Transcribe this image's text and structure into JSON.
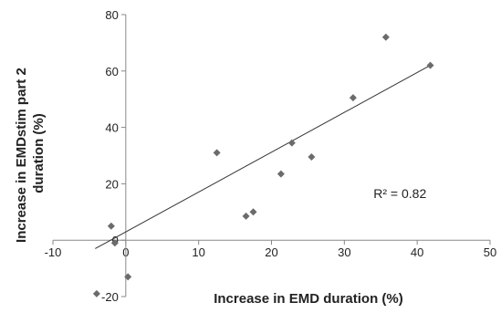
{
  "chart_data": {
    "type": "scatter",
    "title": "",
    "xlabel": "Increase in EMD duration (%)",
    "ylabel_lines": [
      "Increase in EMDstim part 2",
      "duration (%)"
    ],
    "xlim": [
      -10,
      50
    ],
    "ylim": [
      -20,
      80
    ],
    "x_ticks": [
      -10,
      0,
      10,
      20,
      30,
      40,
      50
    ],
    "y_ticks": [
      -20,
      0,
      20,
      40,
      60,
      80
    ],
    "x_tick_labels": [
      "-10",
      "0",
      "10",
      "20",
      "30",
      "40",
      "50"
    ],
    "y_tick_labels": [
      "-20",
      "0",
      "20",
      "40",
      "60",
      "80"
    ],
    "grid": false,
    "marker": "diamond",
    "marker_color": "#6b6b6b",
    "line_color": "#333333",
    "points": [
      {
        "x": -2,
        "y": 5
      },
      {
        "x": -1.5,
        "y": -1
      },
      {
        "x": 0.3,
        "y": -13
      },
      {
        "x": -4,
        "y": -19
      },
      {
        "x": 12.5,
        "y": 31
      },
      {
        "x": 16.5,
        "y": 8.5
      },
      {
        "x": 17.5,
        "y": 10
      },
      {
        "x": 21.3,
        "y": 23.5
      },
      {
        "x": 22.8,
        "y": 34.5
      },
      {
        "x": 25.5,
        "y": 29.5
      },
      {
        "x": 31.2,
        "y": 50.5
      },
      {
        "x": 35.7,
        "y": 72
      },
      {
        "x": 41.8,
        "y": 62
      }
    ],
    "trendline": {
      "x": [
        -4.2,
        41.8
      ],
      "y": [
        -3,
        62
      ]
    },
    "annotation": "R² = 0.82",
    "annotation_anchor": {
      "x": 34,
      "y": 15
    }
  }
}
